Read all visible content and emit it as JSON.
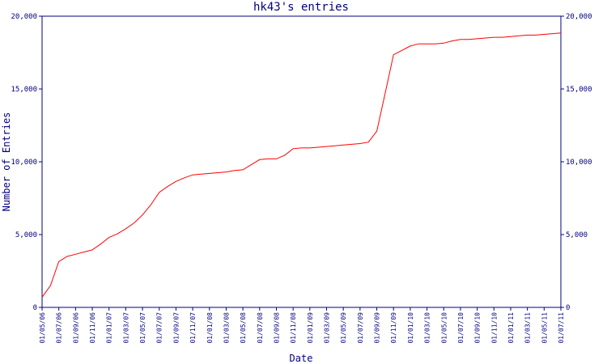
{
  "chart_data": {
    "type": "line",
    "title": "hk43's entries",
    "x_label": "Date",
    "y_label": "Number of Entries",
    "categories": [
      "01/05/06",
      null,
      "01/07/06",
      null,
      "01/09/06",
      null,
      "01/11/06",
      null,
      "01/01/07",
      null,
      "01/03/07",
      null,
      "01/05/07",
      null,
      "01/07/07",
      null,
      "01/09/07",
      null,
      "01/11/07",
      null,
      "01/01/08",
      null,
      "01/03/08",
      null,
      "01/05/08",
      null,
      "01/07/08",
      null,
      "01/09/08",
      null,
      "01/11/08",
      null,
      "01/01/09",
      null,
      "01/03/09",
      null,
      "01/05/09",
      null,
      "01/07/09",
      null,
      "01/09/09",
      null,
      "01/11/09",
      null,
      "01/01/10",
      null,
      "01/03/10",
      null,
      "01/05/10",
      null,
      "01/07/10",
      null,
      "01/09/10",
      null,
      "01/11/10",
      null,
      "01/01/11",
      null,
      "01/03/11",
      null,
      "01/05/11",
      null,
      "01/07/11"
    ],
    "series": [
      {
        "color": "#ff0000",
        "values": [
          700,
          1500,
          3150,
          3500,
          3650,
          3800,
          3950,
          4350,
          4800,
          5050,
          5400,
          5800,
          6350,
          7050,
          7900,
          8300,
          8650,
          8900,
          9100,
          9150,
          9200,
          9250,
          9300,
          9400,
          9450,
          9800,
          10150,
          10200,
          10200,
          10450,
          10900,
          10950,
          10950,
          11000,
          11050,
          11100,
          11150,
          11200,
          11250,
          11350,
          12100,
          14700,
          17350,
          17650,
          17950,
          18100,
          18100,
          18100,
          18150,
          18300,
          18400,
          18400,
          18450,
          18500,
          18550,
          18550,
          18600,
          18650,
          18700,
          18700,
          18750,
          18800,
          18850
        ]
      }
    ],
    "ylim": [
      0,
      20000
    ],
    "yticks": [
      0,
      {
        "value": 5000,
        "label": "5,000"
      },
      {
        "value": 10000,
        "label": "10,000"
      },
      {
        "value": 15000,
        "label": "15,000"
      },
      {
        "value": 20000,
        "label": "20,000"
      }
    ],
    "right_axis": true,
    "axis_color": "#000080"
  }
}
